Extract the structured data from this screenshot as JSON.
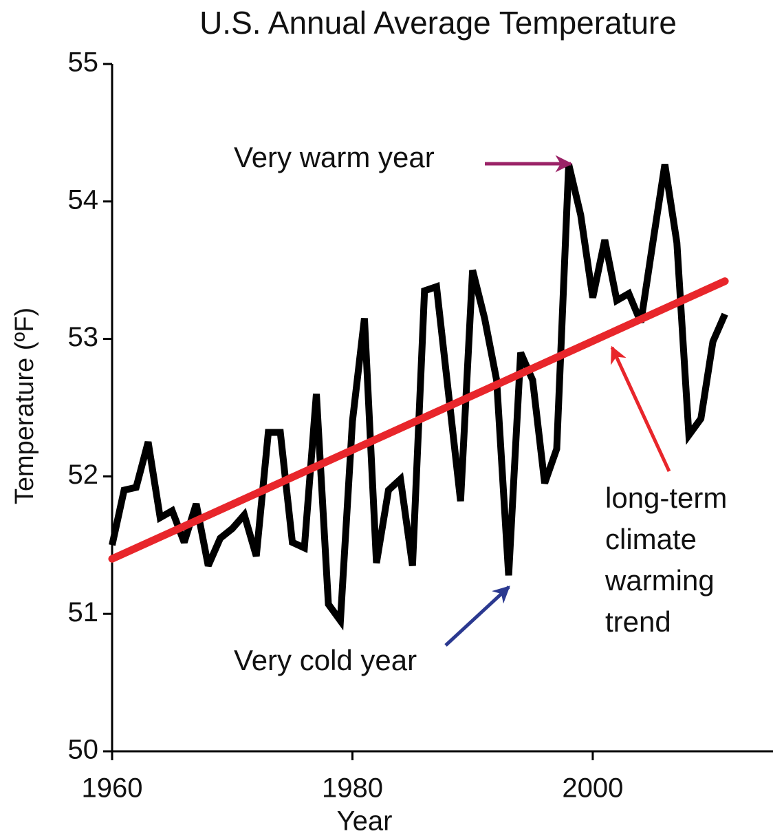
{
  "chart_data": {
    "type": "line",
    "title": "U.S. Annual Average Temperature",
    "x_label": "Year",
    "y_label": "Temperature (ºF)",
    "x": [
      1960,
      1961,
      1962,
      1963,
      1964,
      1965,
      1966,
      1967,
      1968,
      1969,
      1970,
      1971,
      1972,
      1973,
      1974,
      1975,
      1976,
      1977,
      1978,
      1979,
      1980,
      1981,
      1982,
      1983,
      1984,
      1985,
      1986,
      1987,
      1988,
      1989,
      1990,
      1991,
      1992,
      1993,
      1994,
      1995,
      1996,
      1997,
      1998,
      1999,
      2000,
      2001,
      2002,
      2003,
      2004,
      2005,
      2006,
      2007,
      2008,
      2009,
      2010,
      2011
    ],
    "series": [
      {
        "color": "#000000",
        "values": [
          51.5,
          51.9,
          51.92,
          52.25,
          51.7,
          51.75,
          51.52,
          51.8,
          51.35,
          51.55,
          51.62,
          51.72,
          51.42,
          52.32,
          52.32,
          51.52,
          51.48,
          52.6,
          51.07,
          50.95,
          52.4,
          53.15,
          51.37,
          51.9,
          51.98,
          51.35,
          53.35,
          53.38,
          52.6,
          51.82,
          53.5,
          53.15,
          52.7,
          51.28,
          52.9,
          52.7,
          51.95,
          52.2,
          54.27,
          53.9,
          53.3,
          53.72,
          53.28,
          53.33,
          53.12,
          53.7,
          54.27,
          53.7,
          52.3,
          52.42,
          52.98,
          53.18
        ]
      }
    ],
    "trend": {
      "x": [
        1960,
        2011
      ],
      "values": [
        51.4,
        53.42
      ],
      "color": "#e8262b"
    },
    "xlim": [
      1960,
      2015
    ],
    "ylim": [
      50,
      55
    ],
    "xticks": [
      1960,
      1980,
      2000
    ],
    "yticks": [
      50,
      51,
      52,
      53,
      54,
      55
    ],
    "annotations": {
      "warm": {
        "text": "Very warm year",
        "color": "#9b2367"
      },
      "cold": {
        "text": "Very cold year",
        "color": "#2b3990"
      },
      "trend": {
        "lines": [
          "long-term",
          "climate",
          "warming",
          "trend"
        ],
        "color": "#e8262b"
      }
    }
  }
}
